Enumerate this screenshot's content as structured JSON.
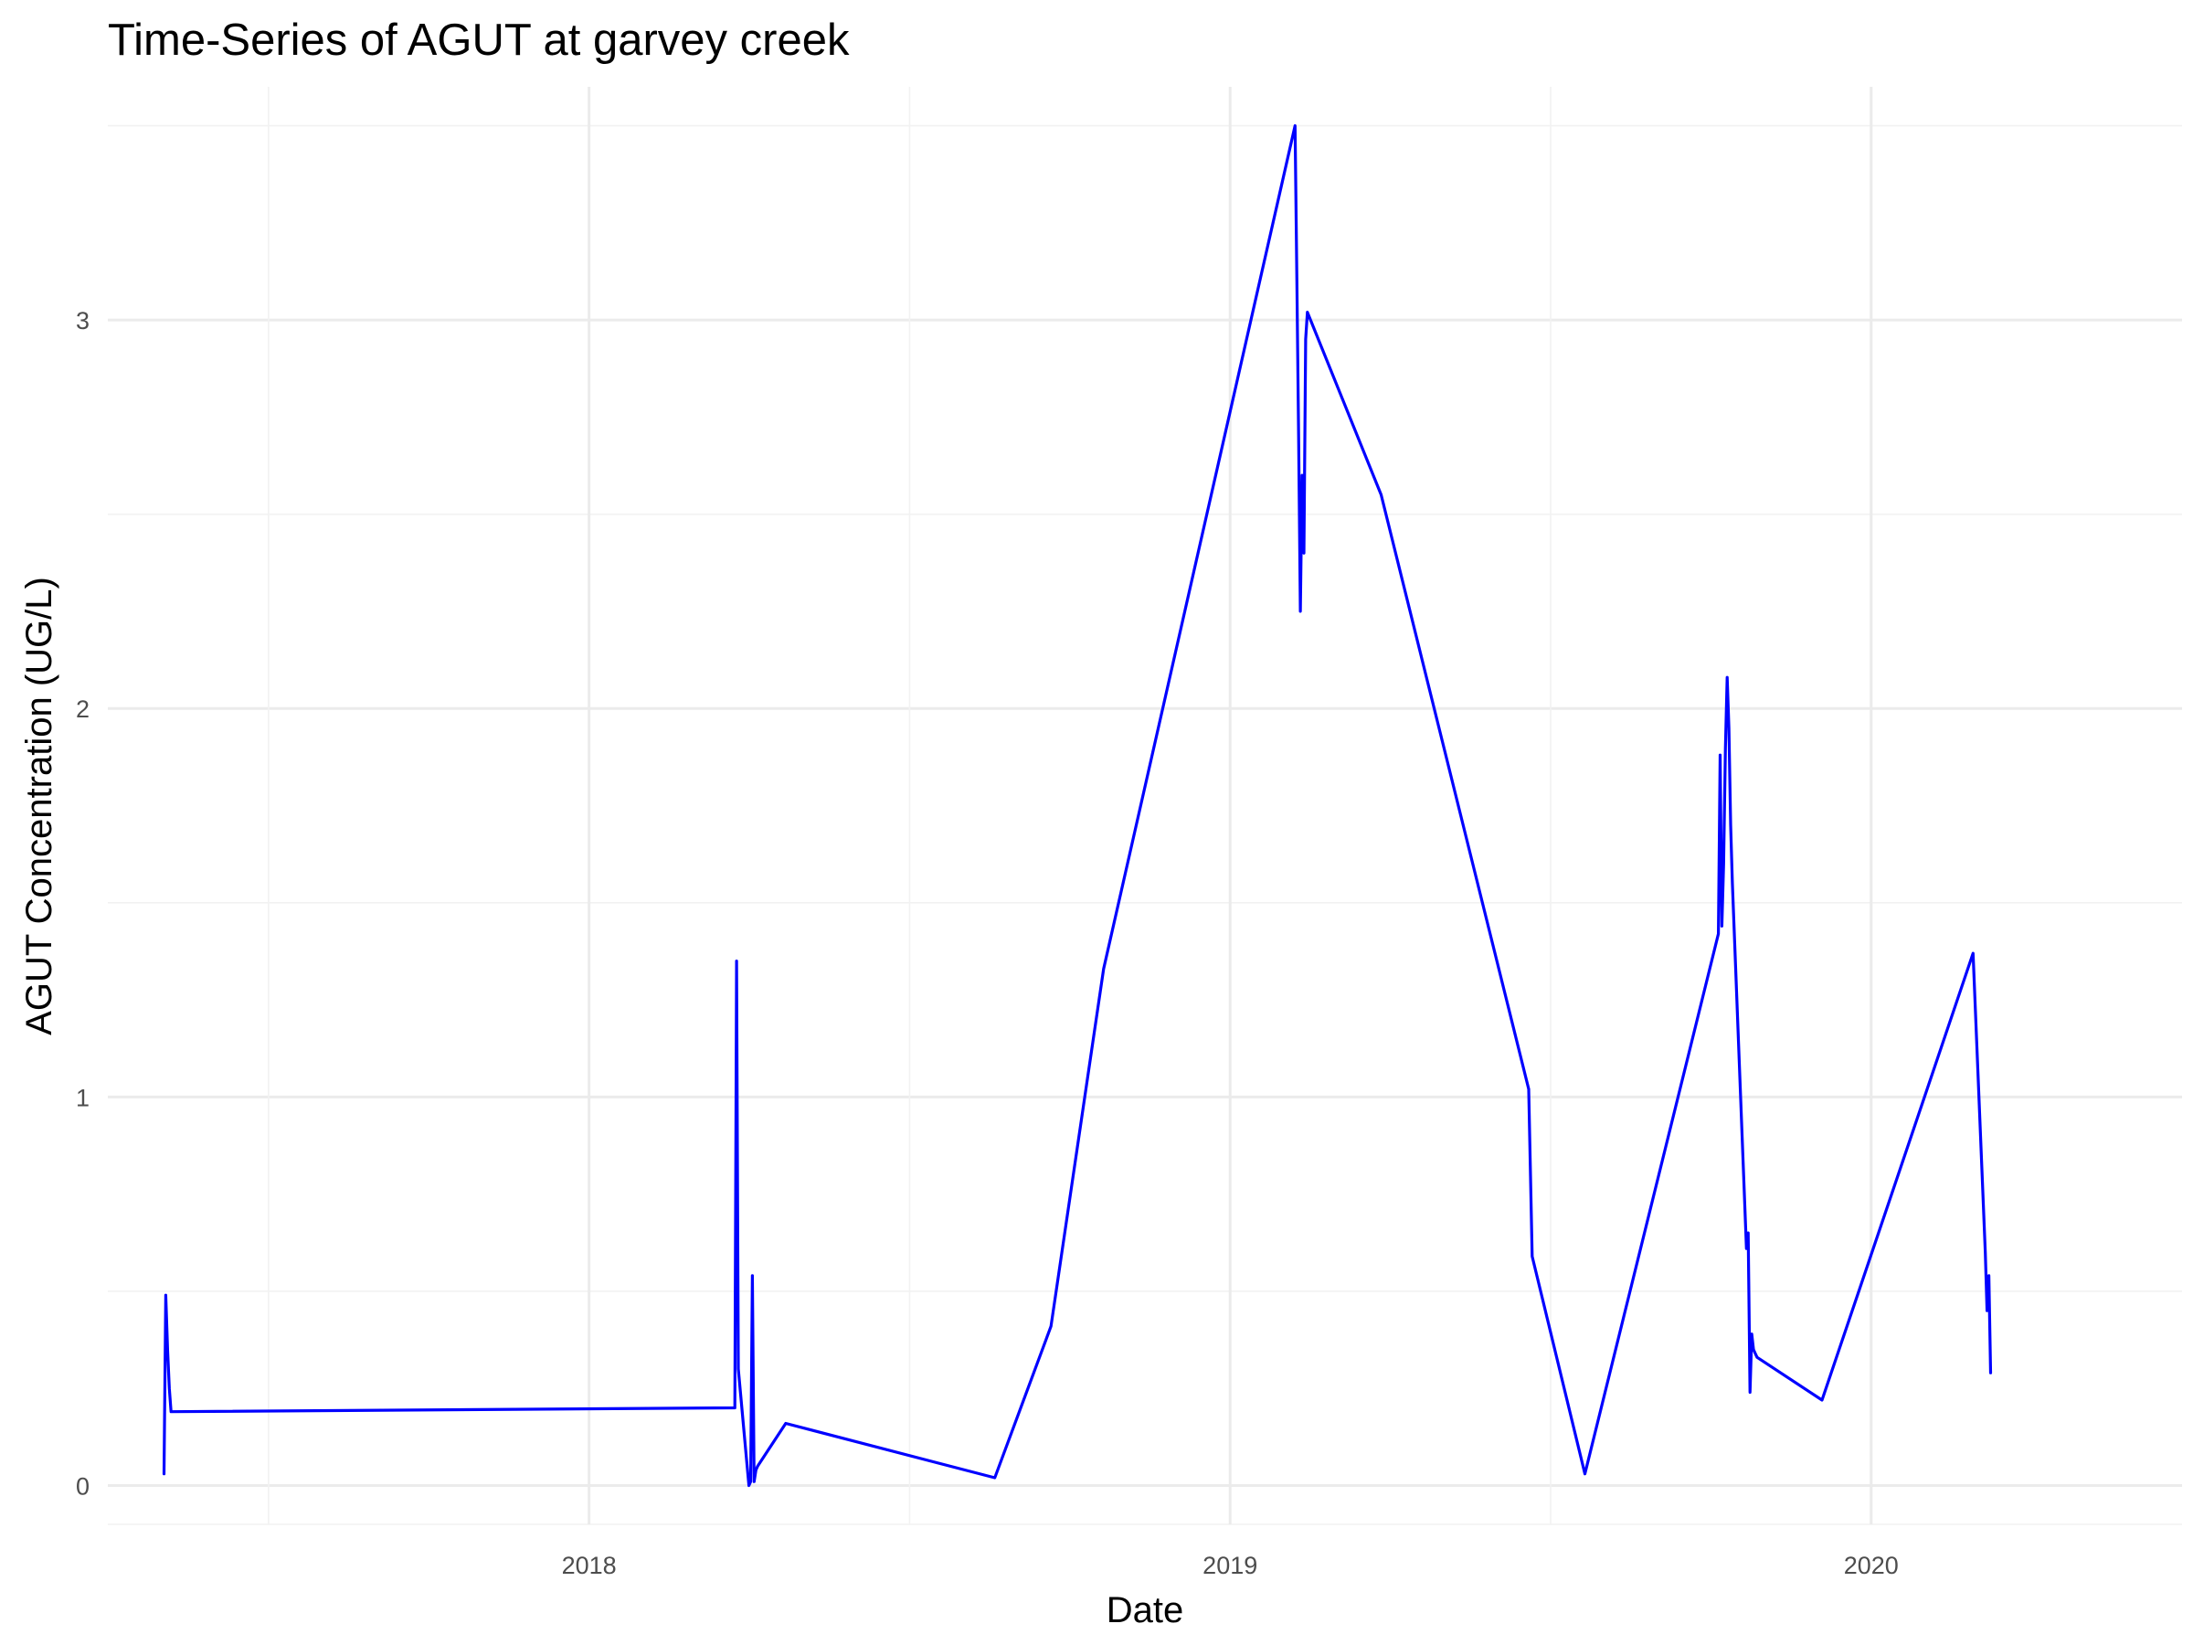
{
  "chart_data": {
    "type": "line",
    "title": "Time-Series of AGUT at garvey creek",
    "xlabel": "Date",
    "ylabel": "AGUT Concentration (UG/L)",
    "x_ticks": [
      "2018",
      "2019",
      "2020"
    ],
    "y_ticks": [
      "0",
      "1",
      "2",
      "3"
    ],
    "xlim": [
      "2017-04-02",
      "2020-06-26"
    ],
    "ylim": [
      -0.1,
      3.6
    ],
    "grid": true,
    "line_color": "#0000ff",
    "series": [
      {
        "x": [
          "2017-05-04",
          "2017-05-05",
          "2017-05-06",
          "2017-05-07",
          "2017-05-08",
          "2018-03-25",
          "2018-03-26",
          "2018-03-27",
          "2018-04-02",
          "2018-04-03",
          "2018-04-04",
          "2018-04-05",
          "2018-04-06",
          "2018-04-07",
          "2018-04-23",
          "2018-08-20",
          "2018-09-21",
          "2018-10-21",
          "2019-02-07",
          "2019-02-08",
          "2019-02-09",
          "2019-02-10",
          "2019-02-11",
          "2019-02-12",
          "2019-02-13",
          "2019-02-14",
          "2019-03-28",
          "2019-06-20",
          "2019-06-22",
          "2019-07-22",
          "2019-10-06",
          "2019-10-07",
          "2019-10-08",
          "2019-10-09",
          "2019-10-10",
          "2019-10-11",
          "2019-10-12",
          "2019-10-13",
          "2019-10-14",
          "2019-10-22",
          "2019-10-23",
          "2019-10-24",
          "2019-10-25",
          "2019-10-26",
          "2019-10-27",
          "2019-10-28",
          "2019-12-04",
          "2020-02-28",
          "2020-03-06",
          "2020-03-07",
          "2020-03-08",
          "2020-03-09"
        ],
        "y": [
          0.03,
          0.49,
          0.35,
          0.25,
          0.19,
          0.2,
          1.35,
          0.3,
          0.0,
          0.01,
          0.54,
          0.01,
          0.04,
          0.05,
          0.16,
          0.02,
          0.41,
          1.33,
          3.5,
          3.1,
          2.7,
          2.25,
          2.6,
          2.4,
          2.95,
          3.02,
          2.55,
          1.02,
          0.59,
          0.03,
          1.42,
          1.88,
          1.44,
          1.6,
          1.9,
          2.08,
          1.95,
          1.7,
          1.55,
          0.61,
          0.65,
          0.24,
          0.39,
          0.35,
          0.34,
          0.33,
          0.22,
          1.37,
          0.6,
          0.45,
          0.54,
          0.29
        ]
      }
    ]
  }
}
